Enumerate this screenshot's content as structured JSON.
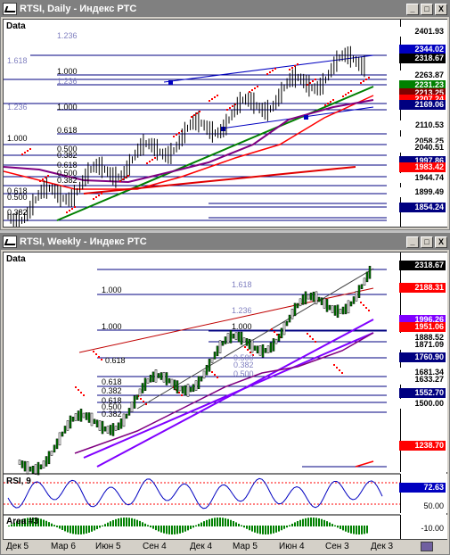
{
  "daily": {
    "title": "RTSI, Daily - Индекс РТС",
    "pane_label": "Data",
    "buttons": {
      "min": "_",
      "max": "□",
      "close": "X"
    },
    "price_tags": [
      {
        "value": "2401.93",
        "bg": "#ffffff",
        "fg": "#000000"
      },
      {
        "value": "2344.02",
        "bg": "#0000c0",
        "fg": "#ffffff"
      },
      {
        "value": "2318.67",
        "bg": "#000000",
        "fg": "#ffffff"
      },
      {
        "value": "2263.87",
        "bg": "#ffffff",
        "fg": "#000000"
      },
      {
        "value": "2231.23",
        "bg": "#008000",
        "fg": "#ffffff"
      },
      {
        "value": "2213.25",
        "bg": "#800000",
        "fg": "#ffffff"
      },
      {
        "value": "2207.24",
        "bg": "#ff0000",
        "fg": "#ffffff"
      },
      {
        "value": "2169.06",
        "bg": "#000080",
        "fg": "#ffffff"
      },
      {
        "value": "2110.53",
        "bg": "#ffffff",
        "fg": "#000000"
      },
      {
        "value": "2058.25",
        "bg": "#ffffff",
        "fg": "#000000"
      },
      {
        "value": "2040.51",
        "bg": "#ffffff",
        "fg": "#000000"
      },
      {
        "value": "1997.86",
        "bg": "#000080",
        "fg": "#ffffff"
      },
      {
        "value": "1983.42",
        "bg": "#ff0000",
        "fg": "#ffffff"
      },
      {
        "value": "1944.74",
        "bg": "#ffffff",
        "fg": "#000000"
      },
      {
        "value": "1899.49",
        "bg": "#ffffff",
        "fg": "#000000"
      },
      {
        "value": "1854.24",
        "bg": "#000080",
        "fg": "#ffffff"
      }
    ],
    "fib_labels": [
      "1.236",
      "1.618",
      "1.000",
      "1.236",
      "1.000",
      "1.236",
      "0.618",
      "1.000",
      "0.500",
      "0.382",
      "0.618",
      "0.500",
      "0.382",
      "0.618",
      "0.500",
      "0.382"
    ]
  },
  "weekly": {
    "title": "RTSI, Weekly - Индекс РТС",
    "pane_label": "Data",
    "buttons": {
      "min": "_",
      "max": "□",
      "close": "X"
    },
    "price_tags": [
      {
        "value": "2318.67",
        "bg": "#000000",
        "fg": "#ffffff"
      },
      {
        "value": "2188.31",
        "bg": "#ff0000",
        "fg": "#ffffff"
      },
      {
        "value": "1996.26",
        "bg": "#8000ff",
        "fg": "#ffffff"
      },
      {
        "value": "1951.06",
        "bg": "#ff0000",
        "fg": "#ffffff"
      },
      {
        "value": "1888.52",
        "bg": "#ffffff",
        "fg": "#000000"
      },
      {
        "value": "1871.09",
        "bg": "#ffffff",
        "fg": "#000000"
      },
      {
        "value": "1760.90",
        "bg": "#000080",
        "fg": "#ffffff"
      },
      {
        "value": "1681.34",
        "bg": "#ffffff",
        "fg": "#000000"
      },
      {
        "value": "1633.27",
        "bg": "#ffffff",
        "fg": "#000000"
      },
      {
        "value": "1552.70",
        "bg": "#000080",
        "fg": "#ffffff"
      },
      {
        "value": "1500.00",
        "bg": "#ffffff",
        "fg": "#000000"
      },
      {
        "value": "1238.70",
        "bg": "#ff0000",
        "fg": "#ffffff"
      }
    ],
    "fib_labels": [
      "1.000",
      "1.618",
      "1.236",
      "1.000",
      "1.000",
      "0.618",
      "0.500",
      "0.382",
      "0.618",
      "0.500",
      "0.382",
      "0.618",
      "0.500",
      "0.382"
    ],
    "rsi": {
      "label": "RSI, 9",
      "value": "72.63",
      "value_bg": "#0000c0",
      "scale": "50.00"
    },
    "area": {
      "label": "Area #3",
      "scale": "-10.00"
    },
    "dates": [
      "Дек 5",
      "Мар 6",
      "Июн 5",
      "Сен 4",
      "Дек 4",
      "Мар 5",
      "Июн 4",
      "Сен 3",
      "Дек 3"
    ]
  }
}
